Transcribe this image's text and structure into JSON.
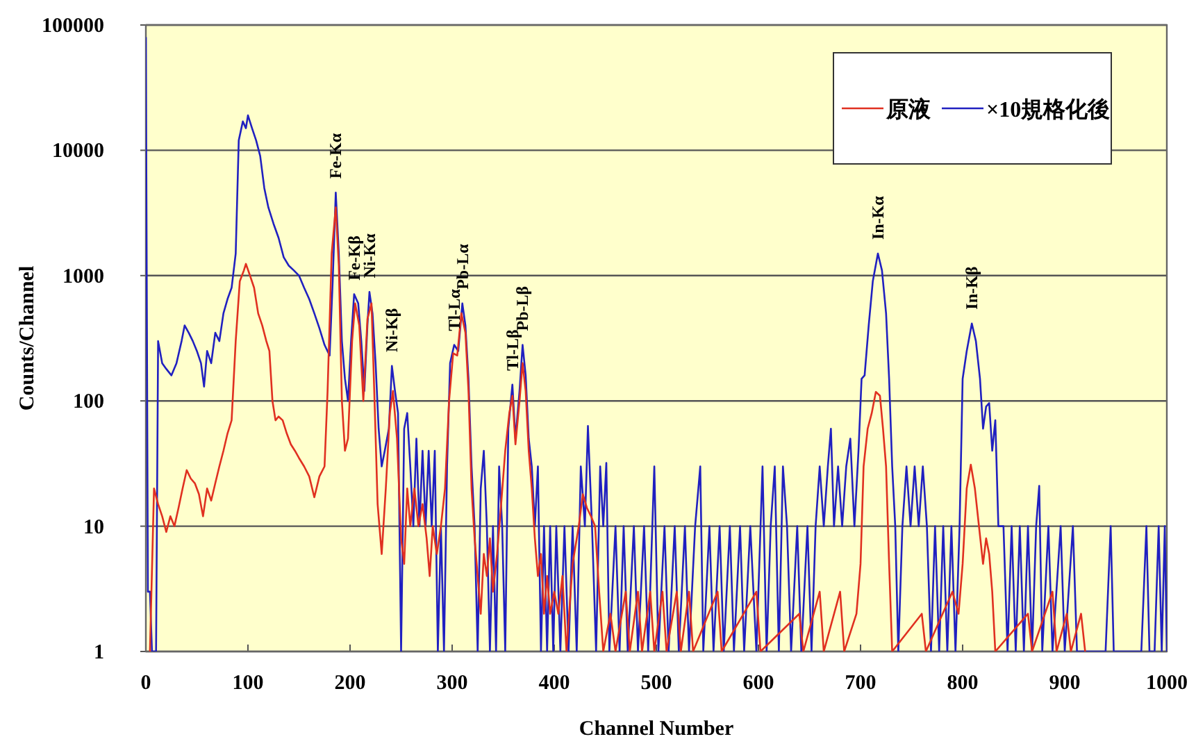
{
  "chart_data": {
    "type": "line",
    "xlabel": "Channel Number",
    "ylabel": "Counts/Channel",
    "xlim": [
      0,
      1000
    ],
    "xticks": [
      0,
      100,
      200,
      300,
      400,
      500,
      600,
      700,
      800,
      900,
      1000
    ],
    "ylim": [
      1,
      100000
    ],
    "yticks": [
      1,
      10,
      100,
      1000,
      10000,
      100000
    ],
    "log": true,
    "grid": "y",
    "legend": "top right",
    "series": [
      {
        "name": "原液",
        "color": "#e03020",
        "x": [
          4,
          8,
          12,
          16,
          20,
          24,
          28,
          32,
          36,
          40,
          44,
          48,
          52,
          56,
          60,
          64,
          68,
          72,
          76,
          80,
          84,
          88,
          92,
          96,
          98,
          102,
          106,
          110,
          114,
          118,
          121,
          124,
          127,
          130,
          134,
          138,
          142,
          146,
          150,
          155,
          160,
          165,
          170,
          175,
          178,
          182,
          186,
          189,
          192,
          195,
          198,
          202,
          205,
          209,
          213,
          217,
          221,
          224,
          227,
          231,
          235,
          239,
          242,
          246,
          250,
          253,
          256,
          259,
          263,
          267,
          271,
          275,
          278,
          281,
          285,
          289,
          293,
          297,
          301,
          305,
          309,
          313,
          316,
          319,
          322,
          325,
          328,
          331,
          334,
          337,
          340,
          344,
          348,
          352,
          356,
          359,
          362,
          366,
          369,
          372,
          375,
          378,
          381,
          384,
          387,
          390,
          393,
          396,
          400,
          404,
          408,
          412,
          418,
          424,
          428,
          432,
          436,
          440,
          444,
          448,
          455,
          460,
          470,
          474,
          482,
          486,
          494,
          498,
          506,
          510,
          520,
          524,
          532,
          536,
          560,
          564,
          598,
          602,
          640,
          644,
          660,
          664,
          680,
          684,
          696,
          700,
          703,
          707,
          711,
          715,
          719,
          722,
          725,
          728,
          731,
          760,
          764,
          790,
          796,
          800,
          804,
          808,
          812,
          816,
          820,
          823,
          826,
          829,
          832,
          864,
          868,
          888,
          892,
          902,
          906,
          916,
          920
        ],
        "values": [
          1,
          20,
          15,
          12,
          9,
          12,
          10,
          14,
          20,
          28,
          24,
          22,
          18,
          12,
          20,
          16,
          22,
          30,
          40,
          55,
          70,
          300,
          900,
          1100,
          1240,
          1000,
          800,
          500,
          400,
          300,
          250,
          100,
          70,
          75,
          70,
          55,
          45,
          40,
          35,
          30,
          25,
          17,
          25,
          30,
          120,
          1500,
          3500,
          1200,
          100,
          40,
          50,
          300,
          600,
          400,
          100,
          450,
          600,
          100,
          15,
          6,
          20,
          80,
          120,
          50,
          8,
          5,
          20,
          10,
          20,
          10,
          15,
          8,
          4,
          10,
          6,
          10,
          20,
          100,
          240,
          230,
          500,
          350,
          120,
          20,
          8,
          4,
          2,
          6,
          4,
          8,
          3,
          6,
          15,
          40,
          80,
          110,
          45,
          100,
          200,
          120,
          40,
          20,
          8,
          4,
          6,
          2,
          4,
          2,
          3,
          2,
          4,
          1,
          5,
          10,
          18,
          14,
          12,
          10,
          3,
          1,
          2,
          1,
          3,
          1,
          3,
          1,
          3,
          1,
          3,
          1,
          3,
          1,
          3,
          1,
          3,
          1,
          3,
          1,
          2,
          1,
          3,
          1,
          3,
          1,
          2,
          5,
          30,
          60,
          80,
          118,
          110,
          60,
          30,
          5,
          1,
          2,
          1,
          3,
          2,
          5,
          20,
          31,
          20,
          10,
          5,
          8,
          6,
          3,
          1,
          2,
          1,
          3,
          1,
          2,
          1,
          2,
          1
        ]
      },
      {
        "name": "×10規格化後",
        "color": "#2020c0",
        "x": [
          0,
          2,
          4,
          6,
          10,
          12,
          16,
          20,
          25,
          30,
          35,
          38,
          42,
          46,
          50,
          54,
          57,
          60,
          64,
          68,
          72,
          76,
          80,
          84,
          88,
          91,
          95,
          98,
          100,
          104,
          108,
          112,
          116,
          120,
          125,
          130,
          135,
          140,
          145,
          150,
          155,
          160,
          165,
          170,
          175,
          180,
          183,
          186,
          189,
          192,
          195,
          198,
          201,
          204,
          208,
          211,
          214,
          217,
          219,
          222,
          225,
          228,
          231,
          234,
          238,
          241,
          244,
          247,
          250,
          253,
          256,
          259,
          262,
          265,
          268,
          271,
          274,
          277,
          280,
          283,
          286,
          289,
          292,
          295,
          298,
          302,
          306,
          310,
          313,
          316,
          319,
          322,
          325,
          328,
          331,
          334,
          337,
          340,
          343,
          346,
          349,
          352,
          355,
          359,
          362,
          366,
          369,
          372,
          375,
          378,
          381,
          384,
          387,
          390,
          393,
          396,
          399,
          402,
          406,
          410,
          414,
          418,
          422,
          426,
          430,
          433,
          437,
          441,
          445,
          448,
          451,
          454,
          460,
          464,
          468,
          472,
          478,
          482,
          488,
          492,
          498,
          502,
          508,
          512,
          518,
          522,
          528,
          532,
          538,
          543,
          546,
          552,
          556,
          562,
          566,
          572,
          576,
          582,
          586,
          592,
          598,
          604,
          608,
          612,
          616,
          620,
          624,
          628,
          632,
          638,
          642,
          648,
          652,
          656,
          660,
          664,
          668,
          671,
          674,
          678,
          682,
          686,
          690,
          694,
          698,
          701,
          704,
          708,
          712,
          717,
          721,
          725,
          728,
          731,
          734,
          737,
          741,
          745,
          749,
          753,
          757,
          761,
          765,
          769,
          773,
          777,
          781,
          785,
          789,
          793,
          797,
          800,
          804,
          809,
          813,
          817,
          820,
          823,
          826,
          829,
          832,
          835,
          840,
          844,
          848,
          852,
          856,
          860,
          864,
          868,
          872,
          875,
          878,
          884,
          888,
          896,
          900,
          908,
          912,
          940,
          945,
          948,
          975,
          980,
          983,
          988,
          992,
          995,
          998,
          1000
        ],
        "values": [
          80000,
          3,
          3,
          1,
          1,
          300,
          200,
          180,
          160,
          200,
          300,
          400,
          350,
          300,
          250,
          200,
          130,
          250,
          200,
          350,
          300,
          500,
          650,
          800,
          1500,
          12000,
          17000,
          15000,
          19000,
          15000,
          12000,
          9000,
          5000,
          3500,
          2600,
          2000,
          1400,
          1200,
          1100,
          1000,
          800,
          650,
          500,
          380,
          280,
          230,
          900,
          4600,
          1500,
          300,
          150,
          100,
          300,
          710,
          600,
          300,
          120,
          400,
          740,
          500,
          200,
          60,
          30,
          40,
          60,
          190,
          120,
          80,
          1,
          60,
          80,
          30,
          10,
          50,
          10,
          40,
          10,
          40,
          10,
          40,
          1,
          10,
          1,
          30,
          200,
          280,
          250,
          600,
          400,
          150,
          30,
          10,
          1,
          20,
          40,
          10,
          1,
          10,
          1,
          30,
          10,
          1,
          60,
          135,
          50,
          120,
          280,
          160,
          50,
          30,
          10,
          30,
          1,
          10,
          1,
          10,
          1,
          10,
          1,
          10,
          1,
          10,
          1,
          30,
          10,
          63,
          10,
          1,
          30,
          10,
          32,
          1,
          10,
          1,
          10,
          1,
          10,
          1,
          10,
          1,
          30,
          1,
          10,
          1,
          10,
          1,
          10,
          1,
          10,
          30,
          1,
          10,
          1,
          10,
          1,
          10,
          1,
          10,
          1,
          10,
          1,
          30,
          1,
          10,
          30,
          1,
          30,
          10,
          1,
          10,
          1,
          10,
          1,
          10,
          30,
          10,
          30,
          60,
          10,
          30,
          10,
          30,
          50,
          10,
          40,
          150,
          160,
          400,
          900,
          1500,
          1100,
          500,
          150,
          30,
          10,
          1,
          10,
          30,
          10,
          30,
          10,
          30,
          10,
          1,
          10,
          1,
          10,
          1,
          10,
          1,
          10,
          150,
          250,
          415,
          300,
          150,
          60,
          90,
          96,
          40,
          70,
          10,
          10,
          1,
          10,
          1,
          10,
          1,
          10,
          1,
          10,
          21,
          1,
          10,
          1,
          10,
          1,
          10,
          1,
          1,
          10,
          1,
          1,
          10,
          1,
          1,
          10,
          1,
          10,
          1
        ]
      }
    ],
    "annotations": [
      {
        "text": "Fe-Kα",
        "x": 186,
        "y": 4600
      },
      {
        "text": "Fe-Kβ",
        "x": 204,
        "y": 710
      },
      {
        "text": "Ni-Kα",
        "x": 219,
        "y": 740
      },
      {
        "text": "Ni-Kβ",
        "x": 241,
        "y": 190
      },
      {
        "text": "Tl-Lα",
        "x": 302,
        "y": 280
      },
      {
        "text": "Pb-Lα",
        "x": 310,
        "y": 600
      },
      {
        "text": "Tl-Lβ",
        "x": 359,
        "y": 135
      },
      {
        "text": "Pb-Lβ",
        "x": 369,
        "y": 280
      },
      {
        "text": "In-Kα",
        "x": 717,
        "y": 1500
      },
      {
        "text": "In-Kβ",
        "x": 809,
        "y": 415
      }
    ]
  }
}
